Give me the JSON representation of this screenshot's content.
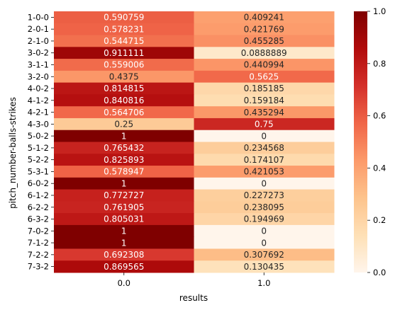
{
  "chart_data": {
    "type": "heatmap",
    "xlabel": "results",
    "ylabel": "pitch_number-balls-strikes",
    "x_categories": [
      "0.0",
      "1.0"
    ],
    "y_categories": [
      "1-0-0",
      "2-0-1",
      "2-1-0",
      "3-0-2",
      "3-1-1",
      "3-2-0",
      "4-0-2",
      "4-1-2",
      "4-2-1",
      "4-3-0",
      "5-0-2",
      "5-1-2",
      "5-2-2",
      "5-3-1",
      "6-0-2",
      "6-1-2",
      "6-2-2",
      "6-3-2",
      "7-0-2",
      "7-1-2",
      "7-2-2",
      "7-3-2"
    ],
    "values": [
      [
        0.590759,
        0.409241
      ],
      [
        0.578231,
        0.421769
      ],
      [
        0.544715,
        0.455285
      ],
      [
        0.911111,
        0.0888889
      ],
      [
        0.559006,
        0.440994
      ],
      [
        0.4375,
        0.5625
      ],
      [
        0.814815,
        0.185185
      ],
      [
        0.840816,
        0.159184
      ],
      [
        0.564706,
        0.435294
      ],
      [
        0.25,
        0.75
      ],
      [
        1,
        0
      ],
      [
        0.765432,
        0.234568
      ],
      [
        0.825893,
        0.174107
      ],
      [
        0.578947,
        0.421053
      ],
      [
        1,
        0
      ],
      [
        0.772727,
        0.227273
      ],
      [
        0.761905,
        0.238095
      ],
      [
        0.805031,
        0.194969
      ],
      [
        1,
        0
      ],
      [
        1,
        0
      ],
      [
        0.692308,
        0.307692
      ],
      [
        0.869565,
        0.130435
      ]
    ],
    "cell_labels": [
      [
        "0.590759",
        "0.409241"
      ],
      [
        "0.578231",
        "0.421769"
      ],
      [
        "0.544715",
        "0.455285"
      ],
      [
        "0.911111",
        "0.0888889"
      ],
      [
        "0.559006",
        "0.440994"
      ],
      [
        "0.4375",
        "0.5625"
      ],
      [
        "0.814815",
        "0.185185"
      ],
      [
        "0.840816",
        "0.159184"
      ],
      [
        "0.564706",
        "0.435294"
      ],
      [
        "0.25",
        "0.75"
      ],
      [
        "1",
        "0"
      ],
      [
        "0.765432",
        "0.234568"
      ],
      [
        "0.825893",
        "0.174107"
      ],
      [
        "0.578947",
        "0.421053"
      ],
      [
        "1",
        "0"
      ],
      [
        "0.772727",
        "0.227273"
      ],
      [
        "0.761905",
        "0.238095"
      ],
      [
        "0.805031",
        "0.194969"
      ],
      [
        "1",
        "0"
      ],
      [
        "1",
        "0"
      ],
      [
        "0.692308",
        "0.307692"
      ],
      [
        "0.869565",
        "0.130435"
      ]
    ],
    "colormap": "OrRd-like (light cream to dark red)",
    "colorbar": {
      "range": [
        0.0,
        1.0
      ],
      "ticks": [
        0.0,
        0.2,
        0.4,
        0.6,
        0.8,
        1.0
      ],
      "tick_labels": [
        "0.0",
        "0.2",
        "0.4",
        "0.6",
        "0.8",
        "1.0"
      ]
    },
    "colors": {
      "low": "#fff5eb",
      "high": "#7f0000",
      "stops": [
        "#fff5eb",
        "#fee0b6",
        "#fdc38c",
        "#fc9a6a",
        "#f06648",
        "#d4302a",
        "#b10b0b",
        "#7f0000"
      ]
    }
  }
}
